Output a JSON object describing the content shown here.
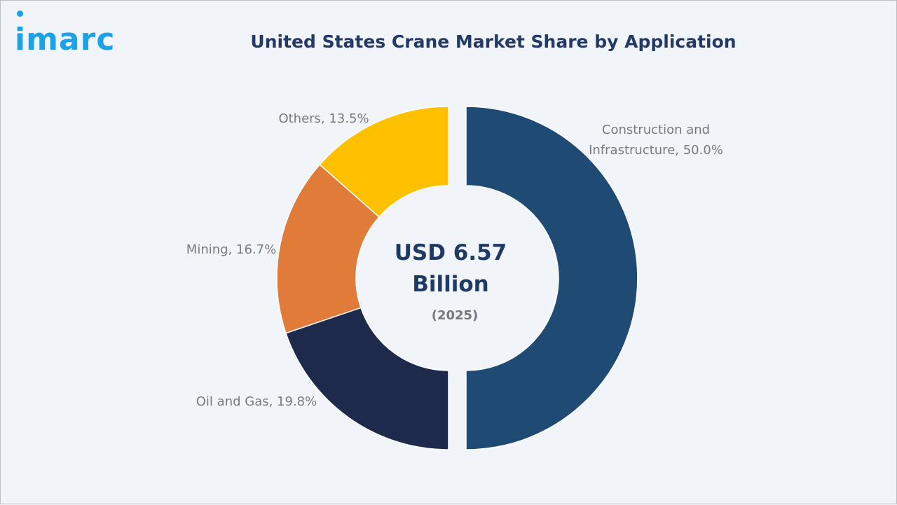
{
  "brand": {
    "logo_text": "imarc",
    "logo_color": "#1aa3e8"
  },
  "chart_data": {
    "type": "pie",
    "title": "United States Crane Market Share by Application",
    "donut": true,
    "center_text": {
      "value_line1": "USD 6.57",
      "value_line2": "Billion",
      "year": "(2025)"
    },
    "categories": [
      "Construction and Infrastructure",
      "Oil and Gas",
      "Mining",
      "Others"
    ],
    "values": [
      50.0,
      19.8,
      16.7,
      13.5
    ],
    "labels": [
      "Construction and Infrastructure, 50.0%",
      "Oil and Gas, 19.8%",
      "Mining, 16.7%",
      "Others, 13.5%"
    ],
    "label_lines": [
      [
        "Construction and",
        "Infrastructure, 50.0%"
      ],
      [
        "Oil and Gas, 19.8%"
      ],
      [
        "Mining, 16.7%"
      ],
      [
        "Others, 13.5%"
      ]
    ],
    "colors": [
      "#1f4a73",
      "#1d2a4b",
      "#e07b39",
      "#ffc000"
    ],
    "unit": "%"
  }
}
